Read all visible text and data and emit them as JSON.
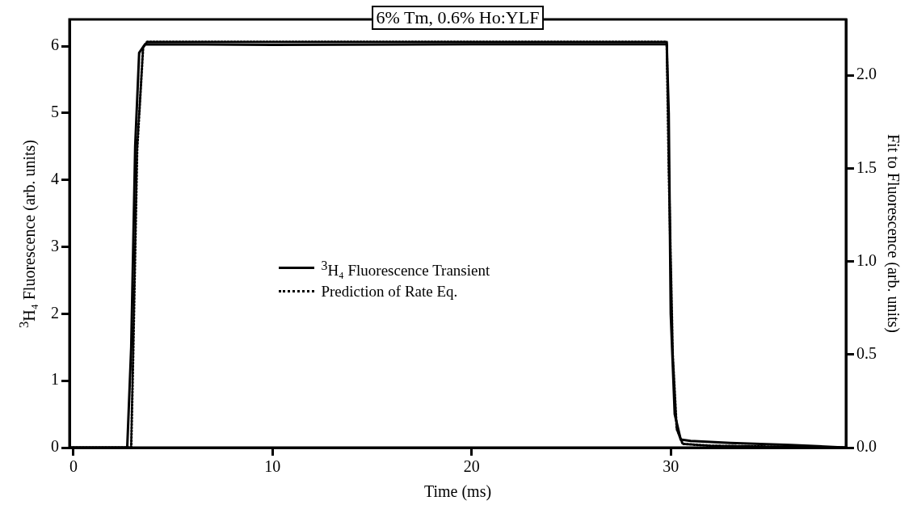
{
  "chart_data": {
    "type": "line",
    "title": "6% Tm, 0.6% Ho:YLF",
    "xlabel": "Time (ms)",
    "ylabel": "$^{3}$H₄ Fluorescence (arb. units)",
    "y2label": "Fit to Fluorescence (arb. units)",
    "xlim": [
      -0.2,
      38.8
    ],
    "xticks": [
      0,
      10,
      20,
      30
    ],
    "ylim": [
      0,
      6.4
    ],
    "yticks": [
      0,
      1,
      2,
      3,
      4,
      5,
      6
    ],
    "y2lim": [
      0,
      2.3
    ],
    "y2ticks": [
      {
        "value": 0,
        "label": "0.0"
      },
      {
        "value": 0.5,
        "label": "0.5"
      },
      {
        "value": 1,
        "label": "1.0"
      },
      {
        "value": 1.5,
        "label": "1.5"
      },
      {
        "value": 2,
        "label": "2.0"
      }
    ],
    "grid": false,
    "legend": "center",
    "marker": "none",
    "series": [
      {
        "name": "$^{3}$H₄ Fluorescence Transient",
        "color": "#000000",
        "line_style": "solid",
        "x": [
          -0.2,
          2.7,
          2.9,
          3.1,
          3.3,
          3.6,
          10,
          20,
          29.8,
          29.9,
          30.0,
          30.2,
          30.5,
          31,
          33,
          36,
          38.8
        ],
        "values": [
          0,
          0,
          1.5,
          4.5,
          5.9,
          6.03,
          6.02,
          6.03,
          6.03,
          5.0,
          2.0,
          0.5,
          0.12,
          0.1,
          0.07,
          0.04,
          0
        ]
      },
      {
        "name": "Prediction of Rate Eq.",
        "color": "#000000",
        "line_style": "dotted",
        "axis": "y2",
        "x": [
          -0.2,
          2.9,
          3.0,
          3.2,
          3.5,
          3.7,
          20,
          29.8,
          29.9,
          30.1,
          30.3,
          30.6,
          32,
          38.8
        ],
        "values": [
          0,
          0,
          0.5,
          1.6,
          2.15,
          2.18,
          2.18,
          2.18,
          1.5,
          0.5,
          0.1,
          0.02,
          0.01,
          0
        ]
      }
    ]
  }
}
